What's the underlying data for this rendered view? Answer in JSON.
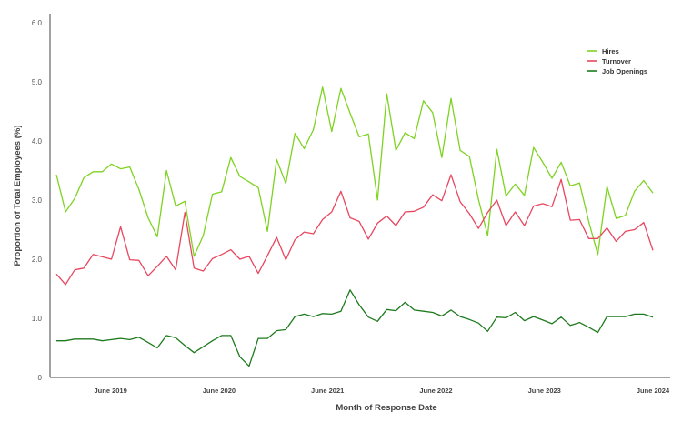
{
  "chart_data": {
    "type": "line",
    "xlabel": "Month of Response Date",
    "ylabel": "Proportion of Total Employees (%)",
    "ylim": [
      0,
      6
    ],
    "yticks": [
      "0",
      "1.0",
      "2.0",
      "3.0",
      "4.0",
      "5.0",
      "6.0"
    ],
    "x_start": "2018-12",
    "x_end": "2024-06",
    "xticks": [
      {
        "label": "June 2019",
        "date": "2019-06"
      },
      {
        "label": "June 2020",
        "date": "2020-06"
      },
      {
        "label": "June 2021",
        "date": "2021-06"
      },
      {
        "label": "June 2022",
        "date": "2022-06"
      },
      {
        "label": "June 2023",
        "date": "2023-06"
      },
      {
        "label": "June 2024",
        "date": "2024-06"
      }
    ],
    "grid": false,
    "legend_position": "top-right",
    "series": [
      {
        "name": "Hires",
        "color": "#7ed321",
        "values": [
          3.43,
          2.8,
          3.03,
          3.38,
          3.48,
          3.48,
          3.61,
          3.53,
          3.56,
          3.18,
          2.7,
          2.38,
          3.5,
          2.9,
          2.98,
          2.05,
          2.4,
          3.1,
          3.14,
          3.72,
          3.4,
          3.31,
          3.21,
          2.47,
          3.69,
          3.28,
          4.13,
          3.87,
          4.19,
          4.91,
          4.16,
          4.89,
          4.47,
          4.07,
          4.12,
          3.0,
          4.8,
          3.84,
          4.14,
          4.04,
          4.68,
          4.48,
          3.72,
          4.72,
          3.84,
          3.74,
          3.01,
          2.4,
          3.86,
          3.07,
          3.27,
          3.08,
          3.89,
          3.64,
          3.37,
          3.64,
          3.24,
          3.29,
          2.64,
          2.08,
          3.23,
          2.69,
          2.74,
          3.15,
          3.33,
          3.12
        ]
      },
      {
        "name": "Turnover",
        "color": "#e8475f",
        "values": [
          1.75,
          1.57,
          1.82,
          1.85,
          2.08,
          2.04,
          2.0,
          2.55,
          1.99,
          1.98,
          1.72,
          1.88,
          2.05,
          1.82,
          2.79,
          1.85,
          1.8,
          2.01,
          2.08,
          2.16,
          2.0,
          2.05,
          1.76,
          2.06,
          2.37,
          1.99,
          2.33,
          2.46,
          2.43,
          2.67,
          2.8,
          3.15,
          2.7,
          2.64,
          2.34,
          2.61,
          2.73,
          2.57,
          2.8,
          2.81,
          2.88,
          3.09,
          2.99,
          3.43,
          2.97,
          2.77,
          2.52,
          2.79,
          3.0,
          2.57,
          2.8,
          2.57,
          2.9,
          2.94,
          2.89,
          3.35,
          2.66,
          2.67,
          2.35,
          2.35,
          2.53,
          2.3,
          2.47,
          2.5,
          2.62,
          2.15
        ]
      },
      {
        "name": "Job Openings",
        "color": "#1e7a1e",
        "values": [
          0.62,
          0.62,
          0.65,
          0.65,
          0.65,
          0.62,
          0.64,
          0.66,
          0.64,
          0.68,
          0.59,
          0.5,
          0.71,
          0.67,
          0.54,
          0.42,
          0.52,
          0.62,
          0.71,
          0.71,
          0.35,
          0.19,
          0.66,
          0.66,
          0.79,
          0.81,
          1.03,
          1.07,
          1.03,
          1.08,
          1.07,
          1.12,
          1.48,
          1.23,
          1.02,
          0.95,
          1.15,
          1.13,
          1.27,
          1.14,
          1.12,
          1.1,
          1.04,
          1.14,
          1.03,
          0.98,
          0.92,
          0.78,
          1.02,
          1.01,
          1.1,
          0.96,
          1.03,
          0.97,
          0.91,
          1.02,
          0.88,
          0.93,
          0.85,
          0.76,
          1.03,
          1.03,
          1.03,
          1.07,
          1.07,
          1.02
        ]
      }
    ]
  }
}
